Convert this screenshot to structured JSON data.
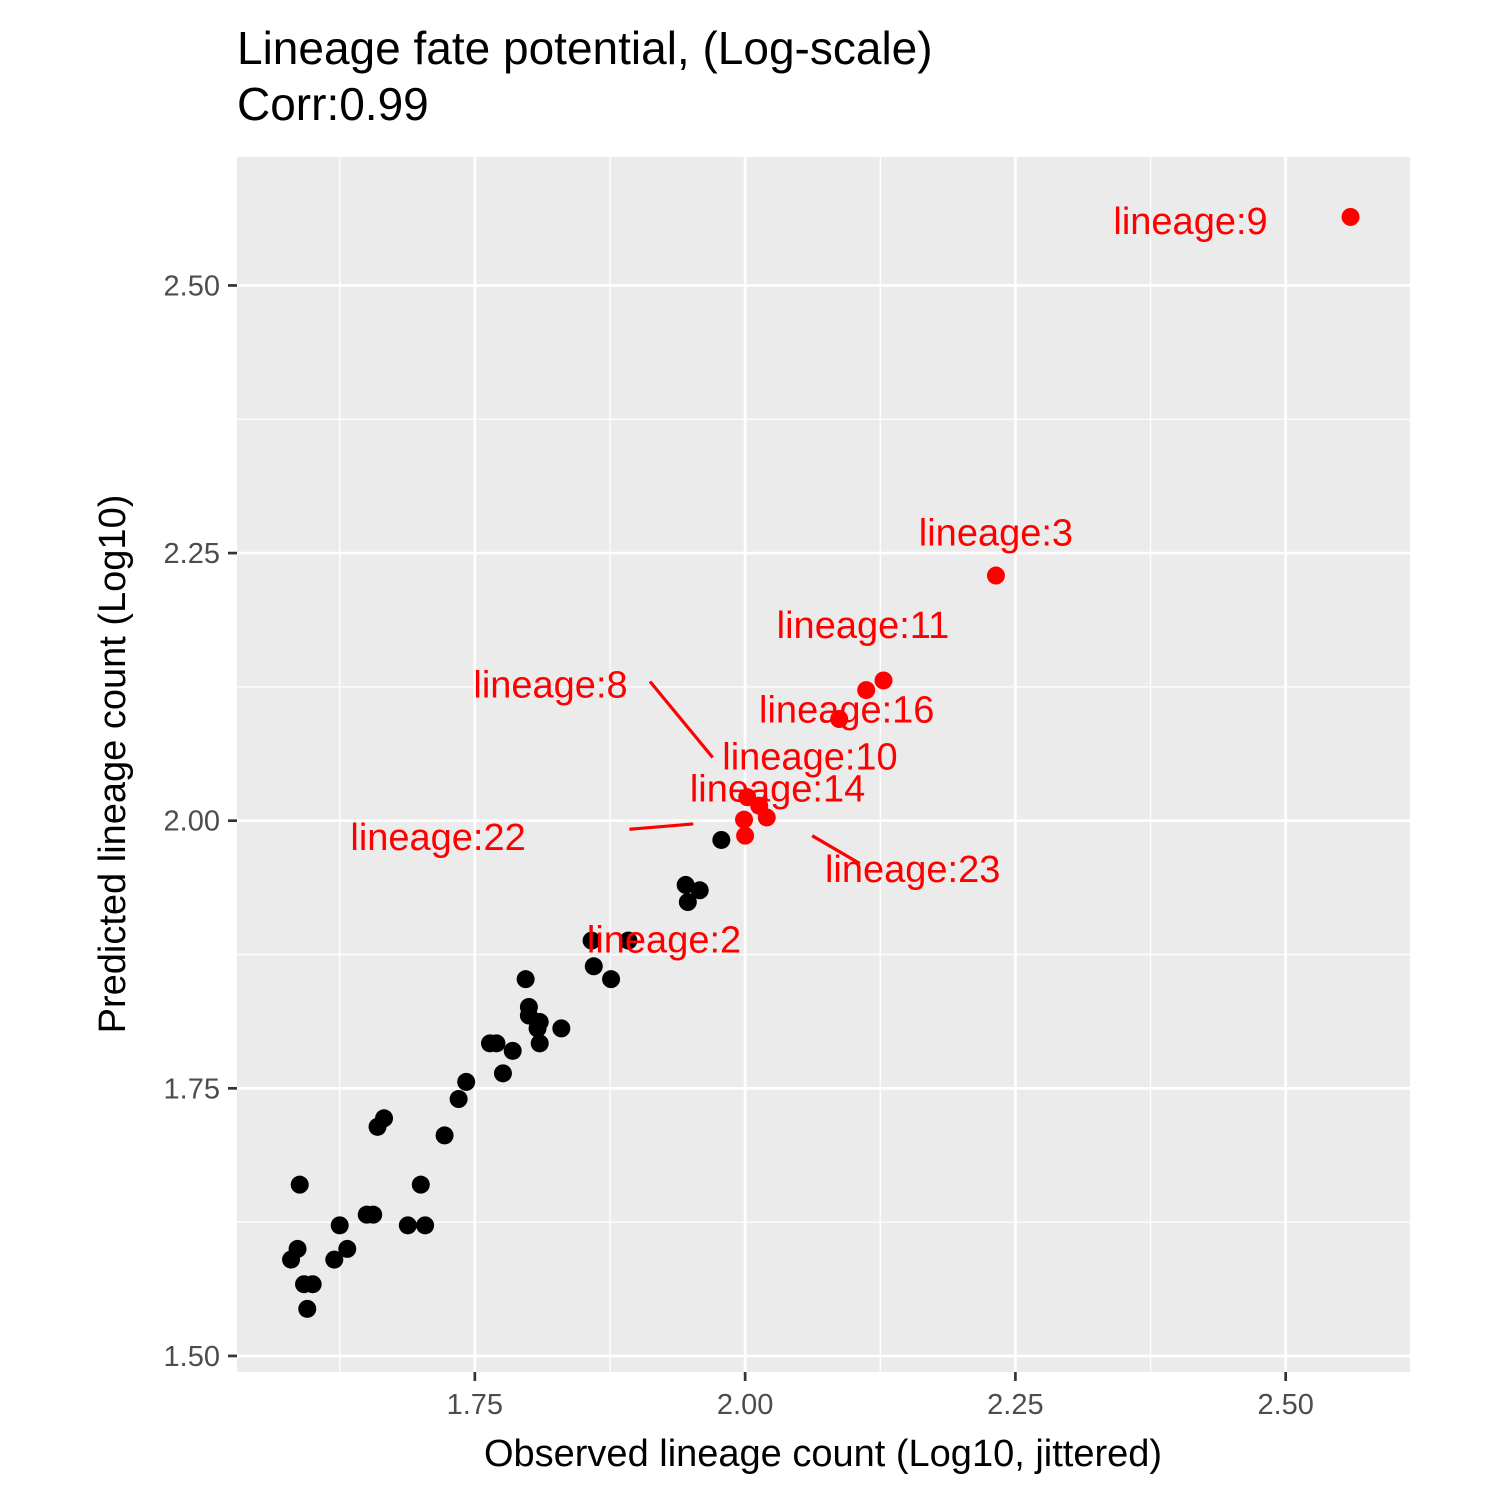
{
  "chart_data": {
    "type": "scatter",
    "title": "Lineage fate potential, (Log-scale)",
    "subtitle": "Corr:0.99",
    "xlabel": "Observed lineage count (Log10, jittered)",
    "ylabel": "Predicted lineage count (Log10)",
    "xlim": [
      1.53,
      2.615
    ],
    "ylim": [
      1.485,
      2.62
    ],
    "x_ticks": [
      "1.75",
      "2.00",
      "2.25",
      "2.50"
    ],
    "x_tick_values": [
      1.75,
      2.0,
      2.25,
      2.5
    ],
    "y_ticks": [
      "1.50",
      "1.75",
      "2.00",
      "2.25",
      "2.50"
    ],
    "y_tick_values": [
      1.5,
      1.75,
      2.0,
      2.25,
      2.5
    ],
    "grid": true,
    "background": "#ebebeb",
    "colors": {
      "highlight": "#ff0000",
      "default": "#000000",
      "grid": "#ffffff"
    },
    "points": [
      {
        "x": 1.58,
        "y": 1.59
      },
      {
        "x": 1.586,
        "y": 1.6
      },
      {
        "x": 1.588,
        "y": 1.66
      },
      {
        "x": 1.592,
        "y": 1.567
      },
      {
        "x": 1.595,
        "y": 1.544
      },
      {
        "x": 1.6,
        "y": 1.567
      },
      {
        "x": 1.62,
        "y": 1.59
      },
      {
        "x": 1.625,
        "y": 1.622
      },
      {
        "x": 1.632,
        "y": 1.6
      },
      {
        "x": 1.65,
        "y": 1.632
      },
      {
        "x": 1.656,
        "y": 1.632
      },
      {
        "x": 1.66,
        "y": 1.714
      },
      {
        "x": 1.666,
        "y": 1.722
      },
      {
        "x": 1.688,
        "y": 1.622
      },
      {
        "x": 1.7,
        "y": 1.66
      },
      {
        "x": 1.704,
        "y": 1.622
      },
      {
        "x": 1.722,
        "y": 1.706
      },
      {
        "x": 1.735,
        "y": 1.74
      },
      {
        "x": 1.742,
        "y": 1.756
      },
      {
        "x": 1.764,
        "y": 1.792
      },
      {
        "x": 1.77,
        "y": 1.792
      },
      {
        "x": 1.776,
        "y": 1.764
      },
      {
        "x": 1.785,
        "y": 1.785
      },
      {
        "x": 1.797,
        "y": 1.852
      },
      {
        "x": 1.8,
        "y": 1.818
      },
      {
        "x": 1.8,
        "y": 1.826
      },
      {
        "x": 1.808,
        "y": 1.806
      },
      {
        "x": 1.81,
        "y": 1.812
      },
      {
        "x": 1.81,
        "y": 1.792
      },
      {
        "x": 1.83,
        "y": 1.806
      },
      {
        "x": 1.858,
        "y": 1.888
      },
      {
        "x": 1.86,
        "y": 1.864
      },
      {
        "x": 1.876,
        "y": 1.852
      },
      {
        "x": 1.892,
        "y": 1.888
      },
      {
        "x": 1.945,
        "y": 1.94
      },
      {
        "x": 1.947,
        "y": 1.924
      },
      {
        "x": 1.958,
        "y": 1.935
      },
      {
        "x": 1.978,
        "y": 1.982
      },
      {
        "x": 2.0,
        "y": 1.986,
        "label": "lineage:2",
        "highlight": true
      },
      {
        "x": 1.999,
        "y": 2.001,
        "label": "lineage:22",
        "highlight": true
      },
      {
        "x": 2.02,
        "y": 2.003,
        "label": "lineage:23",
        "highlight": true
      },
      {
        "x": 2.013,
        "y": 2.014,
        "label": "lineage:14",
        "highlight": true
      },
      {
        "x": 2.002,
        "y": 2.022,
        "label": "lineage:8",
        "highlight": true
      },
      {
        "x": 2.087,
        "y": 2.095,
        "label": "lineage:10",
        "highlight": true
      },
      {
        "x": 2.112,
        "y": 2.122,
        "label": "lineage:16",
        "highlight": true
      },
      {
        "x": 2.128,
        "y": 2.131,
        "label": "lineage:11",
        "highlight": true
      },
      {
        "x": 2.232,
        "y": 2.229,
        "label": "lineage:3",
        "highlight": true
      },
      {
        "x": 2.56,
        "y": 2.564,
        "label": "lineage:9",
        "highlight": true
      }
    ],
    "annotations": [
      {
        "text": "lineage:9",
        "x": 2.412,
        "y": 2.56,
        "anchor": "middle"
      },
      {
        "text": "lineage:3",
        "x": 2.232,
        "y": 2.269,
        "anchor": "middle"
      },
      {
        "text": "lineage:11",
        "x": 2.109,
        "y": 2.183,
        "anchor": "middle"
      },
      {
        "text": "lineage:16",
        "x": 2.094,
        "y": 2.104,
        "anchor": "middle"
      },
      {
        "text": "lineage:10",
        "x": 2.06,
        "y": 2.06,
        "anchor": "middle"
      },
      {
        "text": "lineage:14",
        "x": 2.03,
        "y": 2.03,
        "anchor": "middle"
      },
      {
        "text": "lineage:8",
        "x": 1.82,
        "y": 2.127,
        "anchor": "middle"
      },
      {
        "text": "lineage:22",
        "x": 1.716,
        "y": 1.985,
        "anchor": "middle"
      },
      {
        "text": "lineage:23",
        "x": 2.155,
        "y": 1.955,
        "anchor": "middle"
      },
      {
        "text": "lineage:2",
        "x": 1.925,
        "y": 1.889,
        "anchor": "middle"
      }
    ],
    "segments": [
      {
        "x1": 1.912,
        "y1": 2.13,
        "x2": 1.97,
        "y2": 2.059
      },
      {
        "x1": 1.893,
        "y1": 1.992,
        "x2": 1.952,
        "y2": 1.997
      },
      {
        "x1": 2.062,
        "y1": 1.986,
        "x2": 2.106,
        "y2": 1.96
      }
    ]
  }
}
